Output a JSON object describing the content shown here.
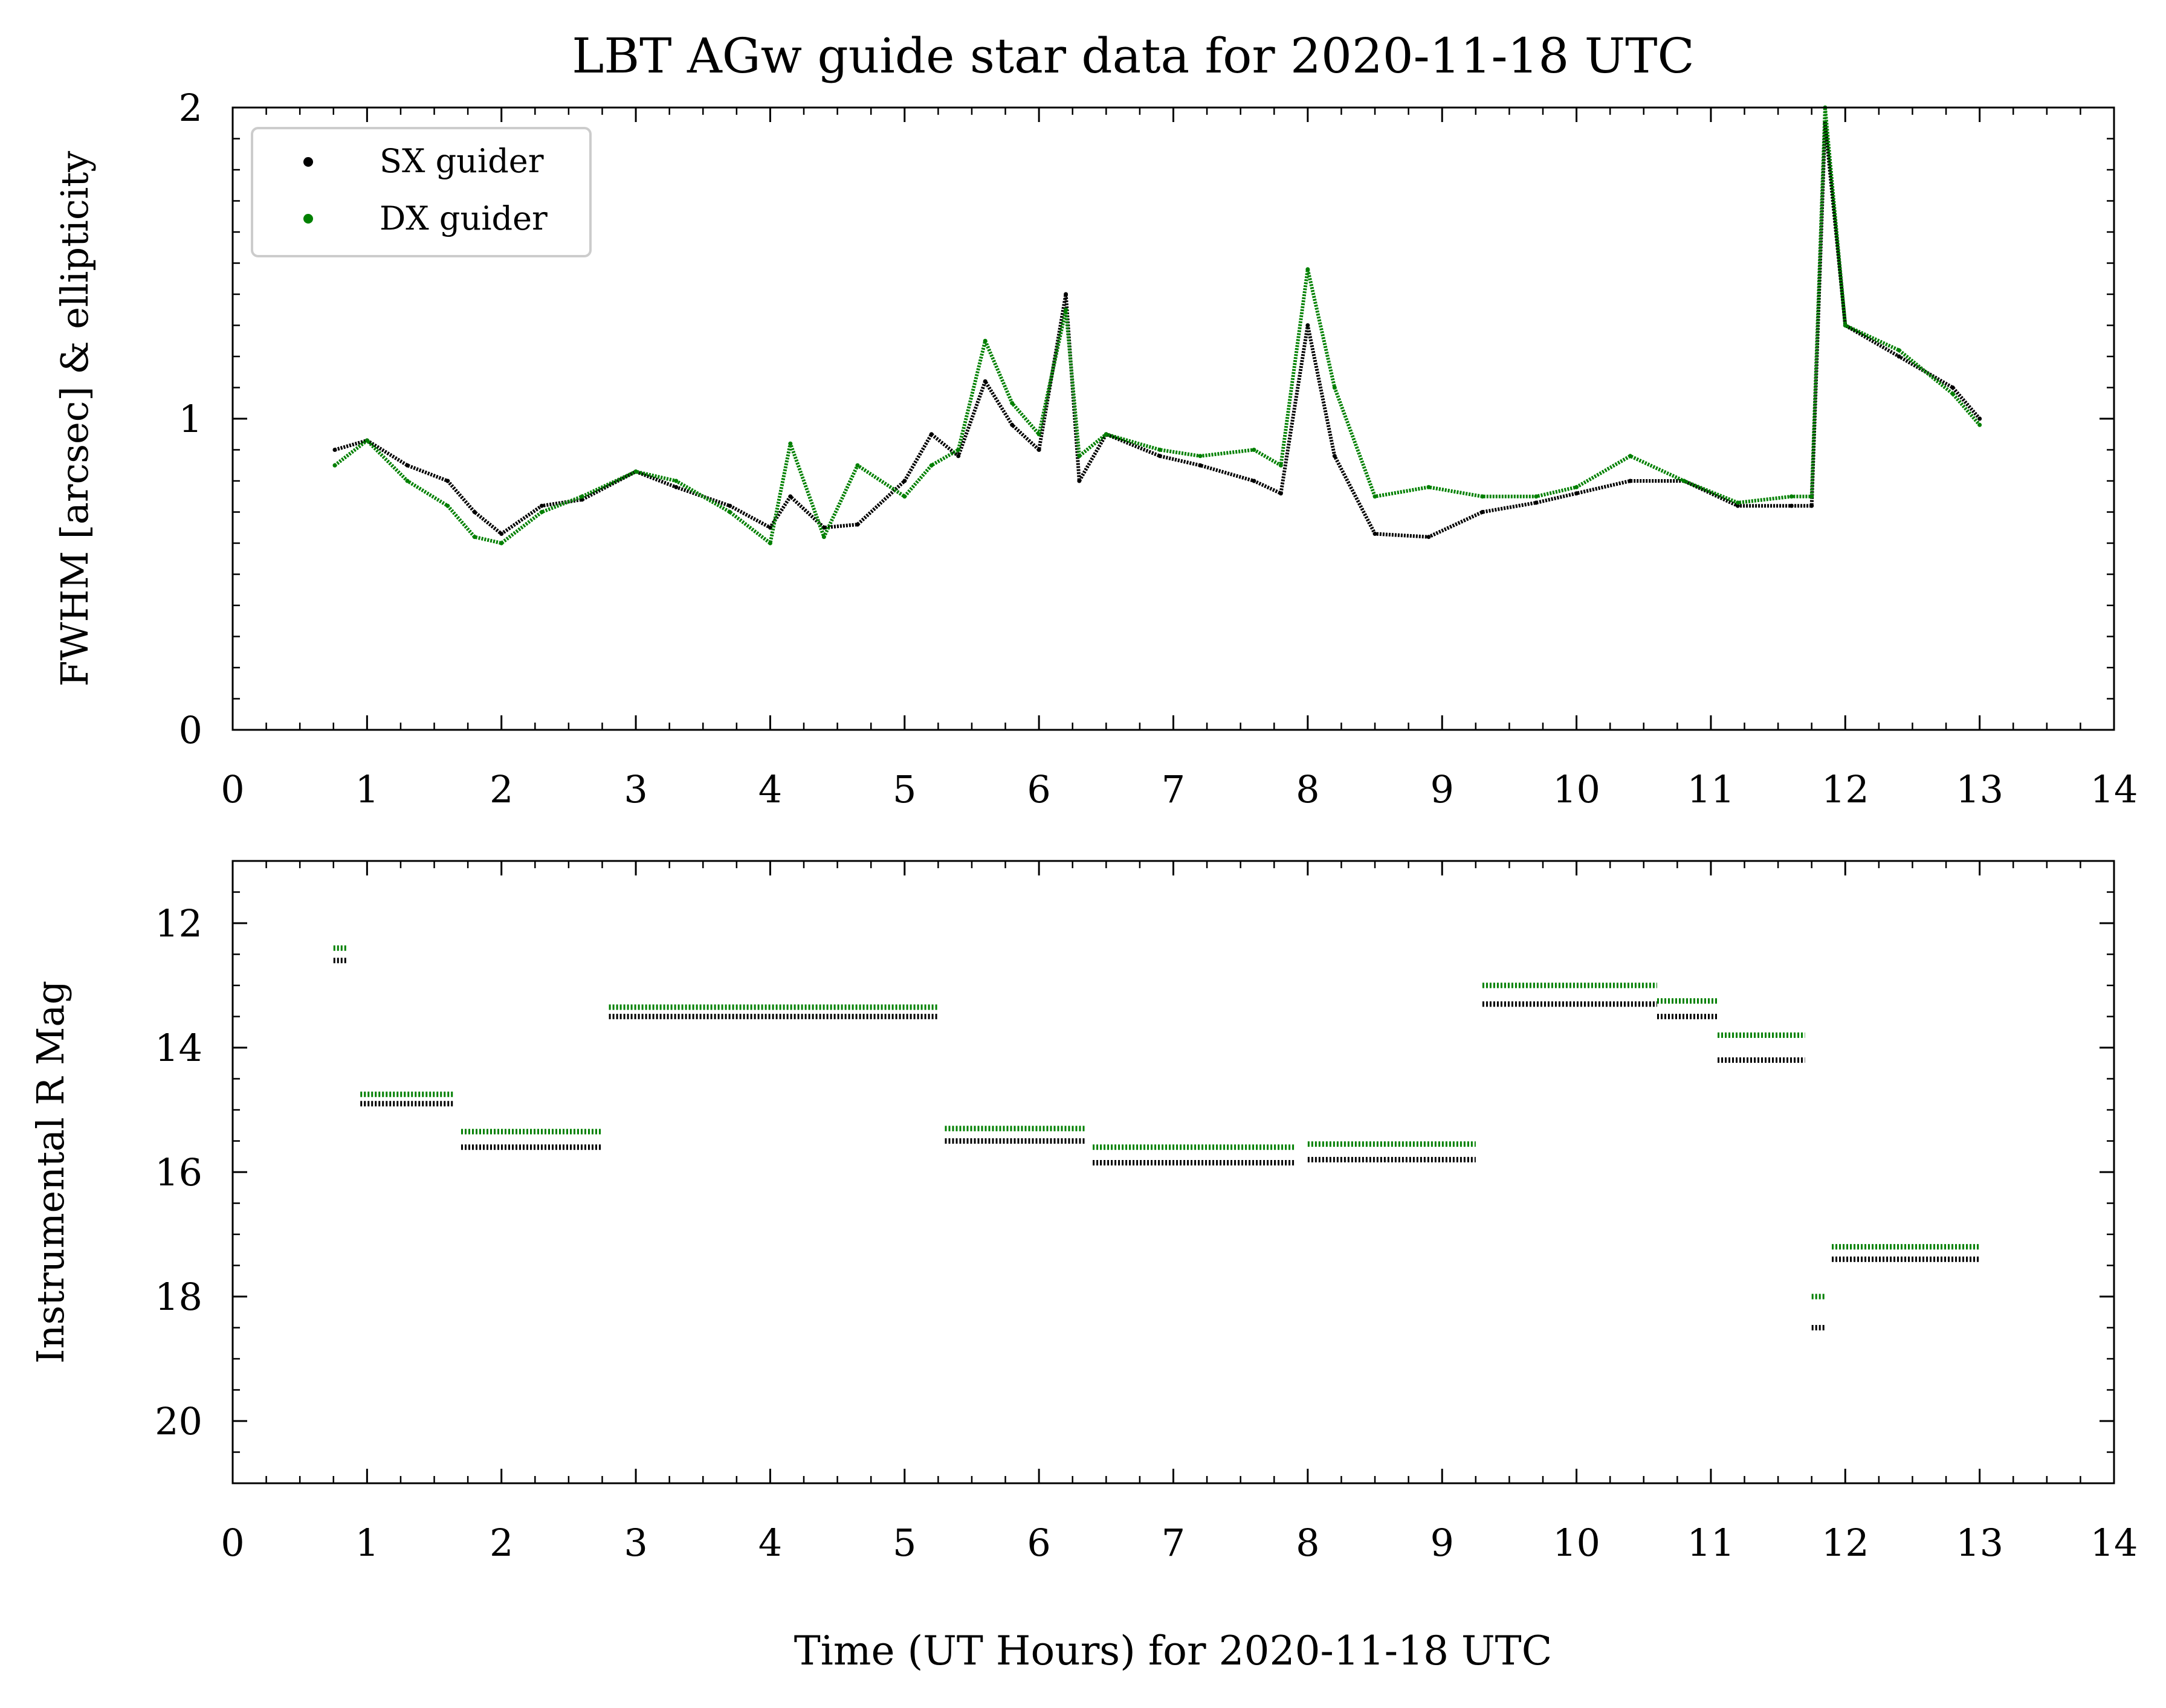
{
  "figure": {
    "title": "LBT AGw guide star data for 2020-11-18 UTC",
    "xlabel": "Time (UT Hours) for 2020-11-18 UTC"
  },
  "colors": {
    "sx": "#000000",
    "dx": "#008000",
    "axes": "#000000",
    "legend_border": "#cccccc"
  },
  "chart_data": [
    {
      "type": "scatter",
      "ylabel": "FWHM [arcsec] & ellipticity",
      "xlim": [
        0,
        14
      ],
      "ylim": [
        0,
        2
      ],
      "yinvert": false,
      "xticks": [
        0,
        1,
        2,
        3,
        4,
        5,
        6,
        7,
        8,
        9,
        10,
        11,
        12,
        13,
        14
      ],
      "yticks": [
        0,
        1,
        2
      ],
      "legend": {
        "placement": "upper-left",
        "entries": [
          "SX guider",
          "DX guider"
        ]
      },
      "series": [
        {
          "name": "SX guider",
          "color": "#000000",
          "x": [
            0.76,
            1.0,
            1.3,
            1.6,
            1.8,
            2.0,
            2.3,
            2.6,
            3.0,
            3.3,
            3.7,
            4.0,
            4.15,
            4.4,
            4.65,
            5.0,
            5.2,
            5.4,
            5.6,
            5.8,
            6.0,
            6.2,
            6.3,
            6.5,
            6.9,
            7.2,
            7.6,
            7.8,
            8.0,
            8.2,
            8.5,
            8.9,
            9.3,
            9.7,
            10.0,
            10.4,
            10.8,
            11.2,
            11.6,
            11.75,
            11.85,
            12.0,
            12.4,
            12.8,
            13.0
          ],
          "y": [
            0.9,
            0.93,
            0.85,
            0.8,
            0.7,
            0.63,
            0.72,
            0.74,
            0.83,
            0.78,
            0.72,
            0.65,
            0.75,
            0.65,
            0.66,
            0.8,
            0.95,
            0.88,
            1.12,
            0.98,
            0.9,
            1.4,
            0.8,
            0.95,
            0.88,
            0.85,
            0.8,
            0.76,
            1.3,
            0.88,
            0.63,
            0.62,
            0.7,
            0.73,
            0.76,
            0.8,
            0.8,
            0.72,
            0.72,
            0.72,
            1.95,
            1.3,
            1.2,
            1.1,
            1.0
          ]
        },
        {
          "name": "DX guider",
          "color": "#008000",
          "x": [
            0.76,
            1.0,
            1.3,
            1.6,
            1.8,
            2.0,
            2.3,
            2.6,
            3.0,
            3.3,
            3.7,
            4.0,
            4.15,
            4.4,
            4.65,
            5.0,
            5.2,
            5.4,
            5.6,
            5.8,
            6.0,
            6.2,
            6.3,
            6.5,
            6.9,
            7.2,
            7.6,
            7.8,
            8.0,
            8.2,
            8.5,
            8.9,
            9.3,
            9.7,
            10.0,
            10.4,
            10.8,
            11.2,
            11.6,
            11.75,
            11.85,
            12.0,
            12.4,
            12.8,
            13.0
          ],
          "y": [
            0.85,
            0.93,
            0.8,
            0.72,
            0.62,
            0.6,
            0.7,
            0.75,
            0.83,
            0.8,
            0.7,
            0.6,
            0.92,
            0.62,
            0.85,
            0.75,
            0.85,
            0.9,
            1.25,
            1.05,
            0.95,
            1.35,
            0.88,
            0.95,
            0.9,
            0.88,
            0.9,
            0.85,
            1.48,
            1.1,
            0.75,
            0.78,
            0.75,
            0.75,
            0.78,
            0.88,
            0.8,
            0.73,
            0.75,
            0.75,
            2.0,
            1.3,
            1.22,
            1.08,
            0.98
          ]
        }
      ]
    },
    {
      "type": "scatter",
      "ylabel": "Instrumental R Mag",
      "xlim": [
        0,
        14
      ],
      "ylim": [
        11,
        21
      ],
      "yinvert": true,
      "xticks": [
        0,
        1,
        2,
        3,
        4,
        5,
        6,
        7,
        8,
        9,
        10,
        11,
        12,
        13,
        14
      ],
      "yticks": [
        12,
        14,
        16,
        18,
        20
      ],
      "series": [
        {
          "name": "SX guider",
          "color": "#000000",
          "segments": [
            {
              "x": [
                0.75,
                0.85
              ],
              "y": 12.6
            },
            {
              "x": [
                0.95,
                1.65
              ],
              "y": 14.9
            },
            {
              "x": [
                1.7,
                2.75
              ],
              "y": 15.6
            },
            {
              "x": [
                2.8,
                5.25
              ],
              "y": 13.5
            },
            {
              "x": [
                5.3,
                6.35
              ],
              "y": 15.5
            },
            {
              "x": [
                6.4,
                7.9
              ],
              "y": 15.85
            },
            {
              "x": [
                8.0,
                9.25
              ],
              "y": 15.8
            },
            {
              "x": [
                9.3,
                10.6
              ],
              "y": 13.3
            },
            {
              "x": [
                10.6,
                11.05
              ],
              "y": 13.5
            },
            {
              "x": [
                11.05,
                11.7
              ],
              "y": 14.2
            },
            {
              "x": [
                11.75,
                11.85
              ],
              "y": 18.5
            },
            {
              "x": [
                11.9,
                13.0
              ],
              "y": 17.4
            }
          ]
        },
        {
          "name": "DX guider",
          "color": "#008000",
          "segments": [
            {
              "x": [
                0.75,
                0.85
              ],
              "y": 12.4
            },
            {
              "x": [
                0.95,
                1.65
              ],
              "y": 14.75
            },
            {
              "x": [
                1.7,
                2.75
              ],
              "y": 15.35
            },
            {
              "x": [
                2.8,
                5.25
              ],
              "y": 13.35
            },
            {
              "x": [
                5.3,
                6.35
              ],
              "y": 15.3
            },
            {
              "x": [
                6.4,
                7.9
              ],
              "y": 15.6
            },
            {
              "x": [
                8.0,
                9.25
              ],
              "y": 15.55
            },
            {
              "x": [
                9.3,
                10.6
              ],
              "y": 13.0
            },
            {
              "x": [
                10.6,
                11.05
              ],
              "y": 13.25
            },
            {
              "x": [
                11.05,
                11.7
              ],
              "y": 13.8
            },
            {
              "x": [
                11.75,
                11.85
              ],
              "y": 18.0
            },
            {
              "x": [
                11.9,
                13.0
              ],
              "y": 17.2
            }
          ]
        }
      ]
    }
  ]
}
